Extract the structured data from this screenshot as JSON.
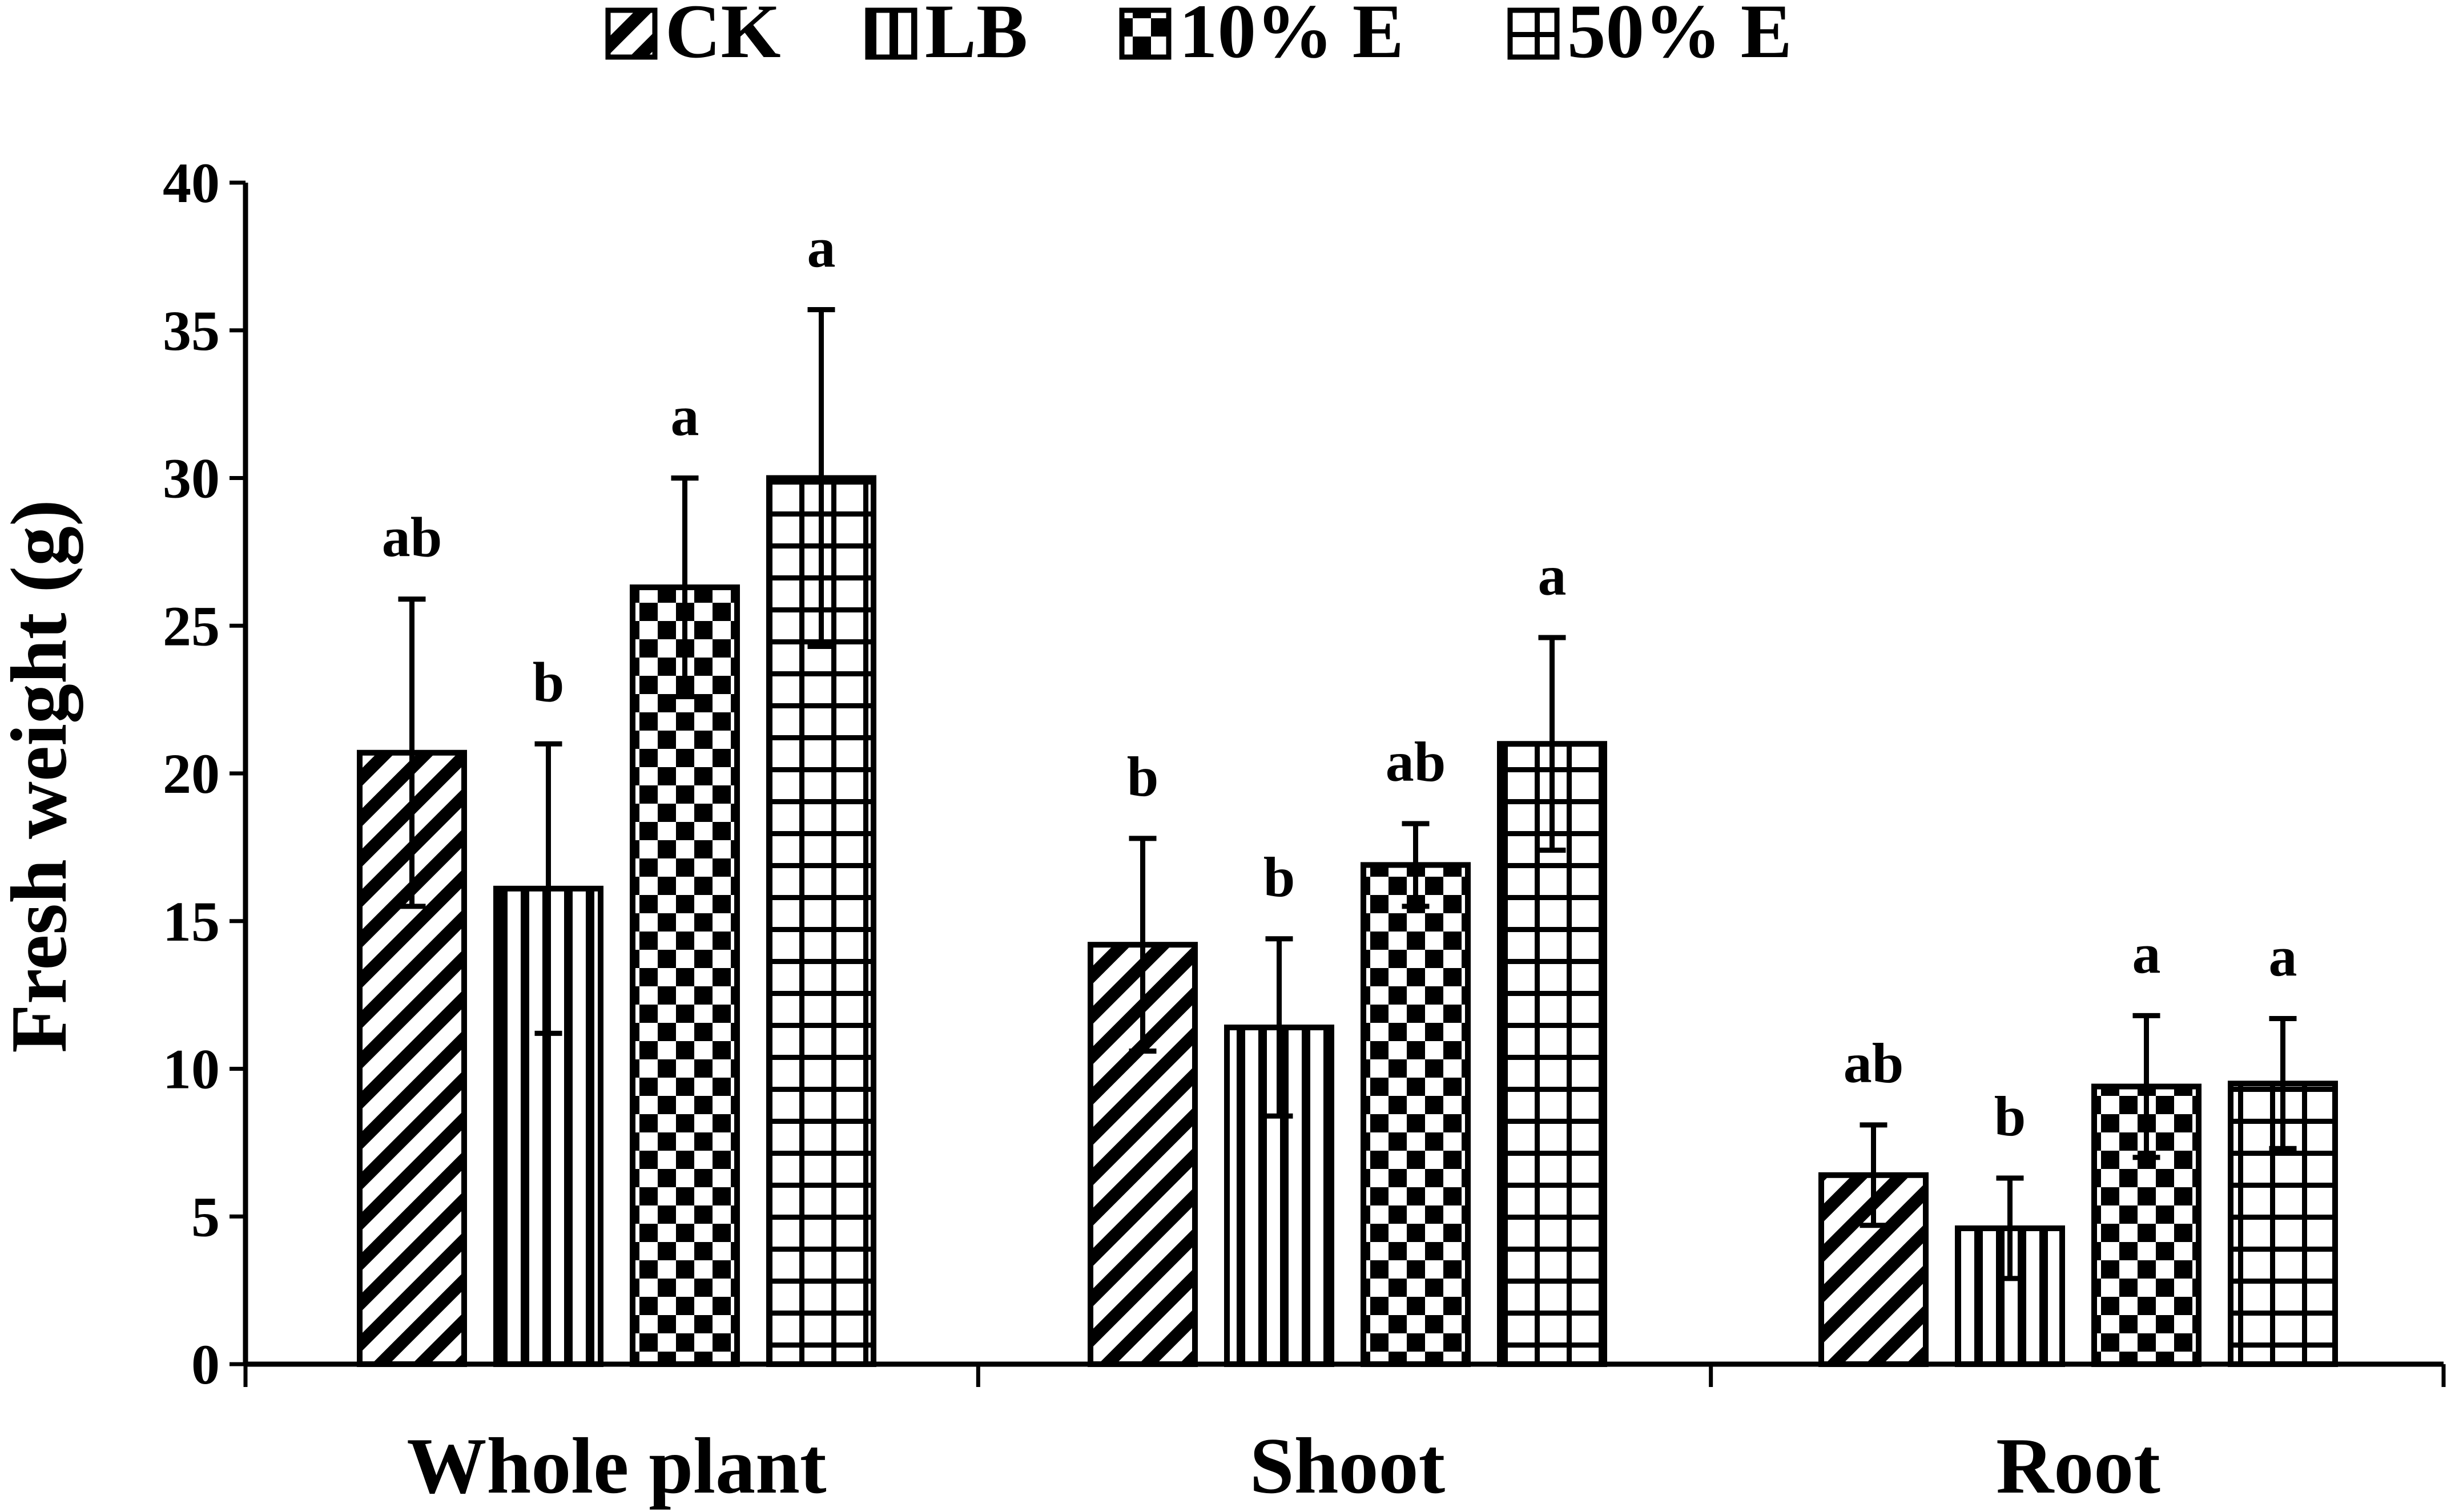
{
  "chart_data": {
    "type": "bar",
    "title": "",
    "xlabel": "",
    "ylabel": "Fresh weight (g)",
    "ylim": [
      0,
      40
    ],
    "yticks": [
      0,
      5,
      10,
      15,
      20,
      25,
      30,
      35,
      40
    ],
    "grid": false,
    "legend": "top",
    "categories": [
      "Whole plant",
      "Shoot",
      "Root"
    ],
    "series": [
      {
        "name": "CK",
        "pattern": "diagonal",
        "values": [
          20.7,
          14.2,
          6.4
        ],
        "errors": [
          5.2,
          3.6,
          1.7
        ],
        "letters": [
          "ab",
          "b",
          "ab"
        ]
      },
      {
        "name": "LB",
        "pattern": "vertical",
        "values": [
          16.1,
          11.4,
          4.6
        ],
        "errors": [
          4.9,
          3.0,
          1.7
        ],
        "letters": [
          "b",
          "b",
          "b"
        ]
      },
      {
        "name": "10% E",
        "pattern": "checker",
        "values": [
          26.3,
          16.9,
          9.4
        ],
        "errors": [
          3.7,
          1.4,
          2.4
        ],
        "letters": [
          "a",
          "ab",
          "a"
        ]
      },
      {
        "name": "50% E",
        "pattern": "grid",
        "values": [
          30.0,
          21.0,
          9.5
        ],
        "errors": [
          5.7,
          3.6,
          2.2
        ],
        "letters": [
          "a",
          "a",
          "a"
        ]
      }
    ]
  }
}
